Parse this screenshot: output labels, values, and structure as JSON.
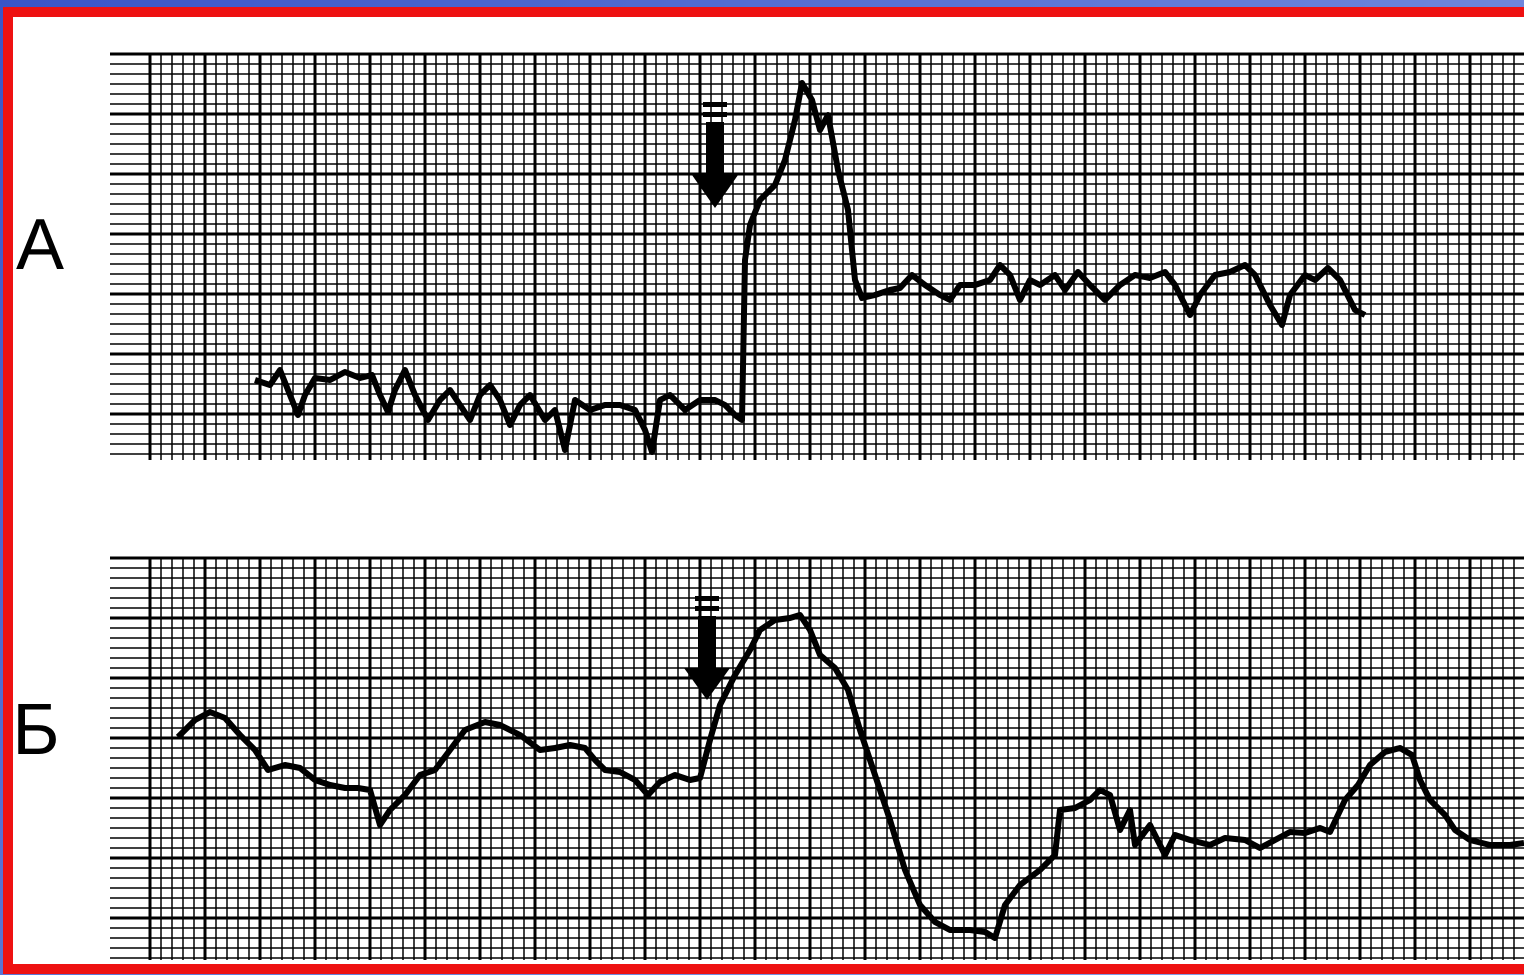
{
  "panels": [
    {
      "label": "А"
    },
    {
      "label": "Б"
    }
  ]
}
